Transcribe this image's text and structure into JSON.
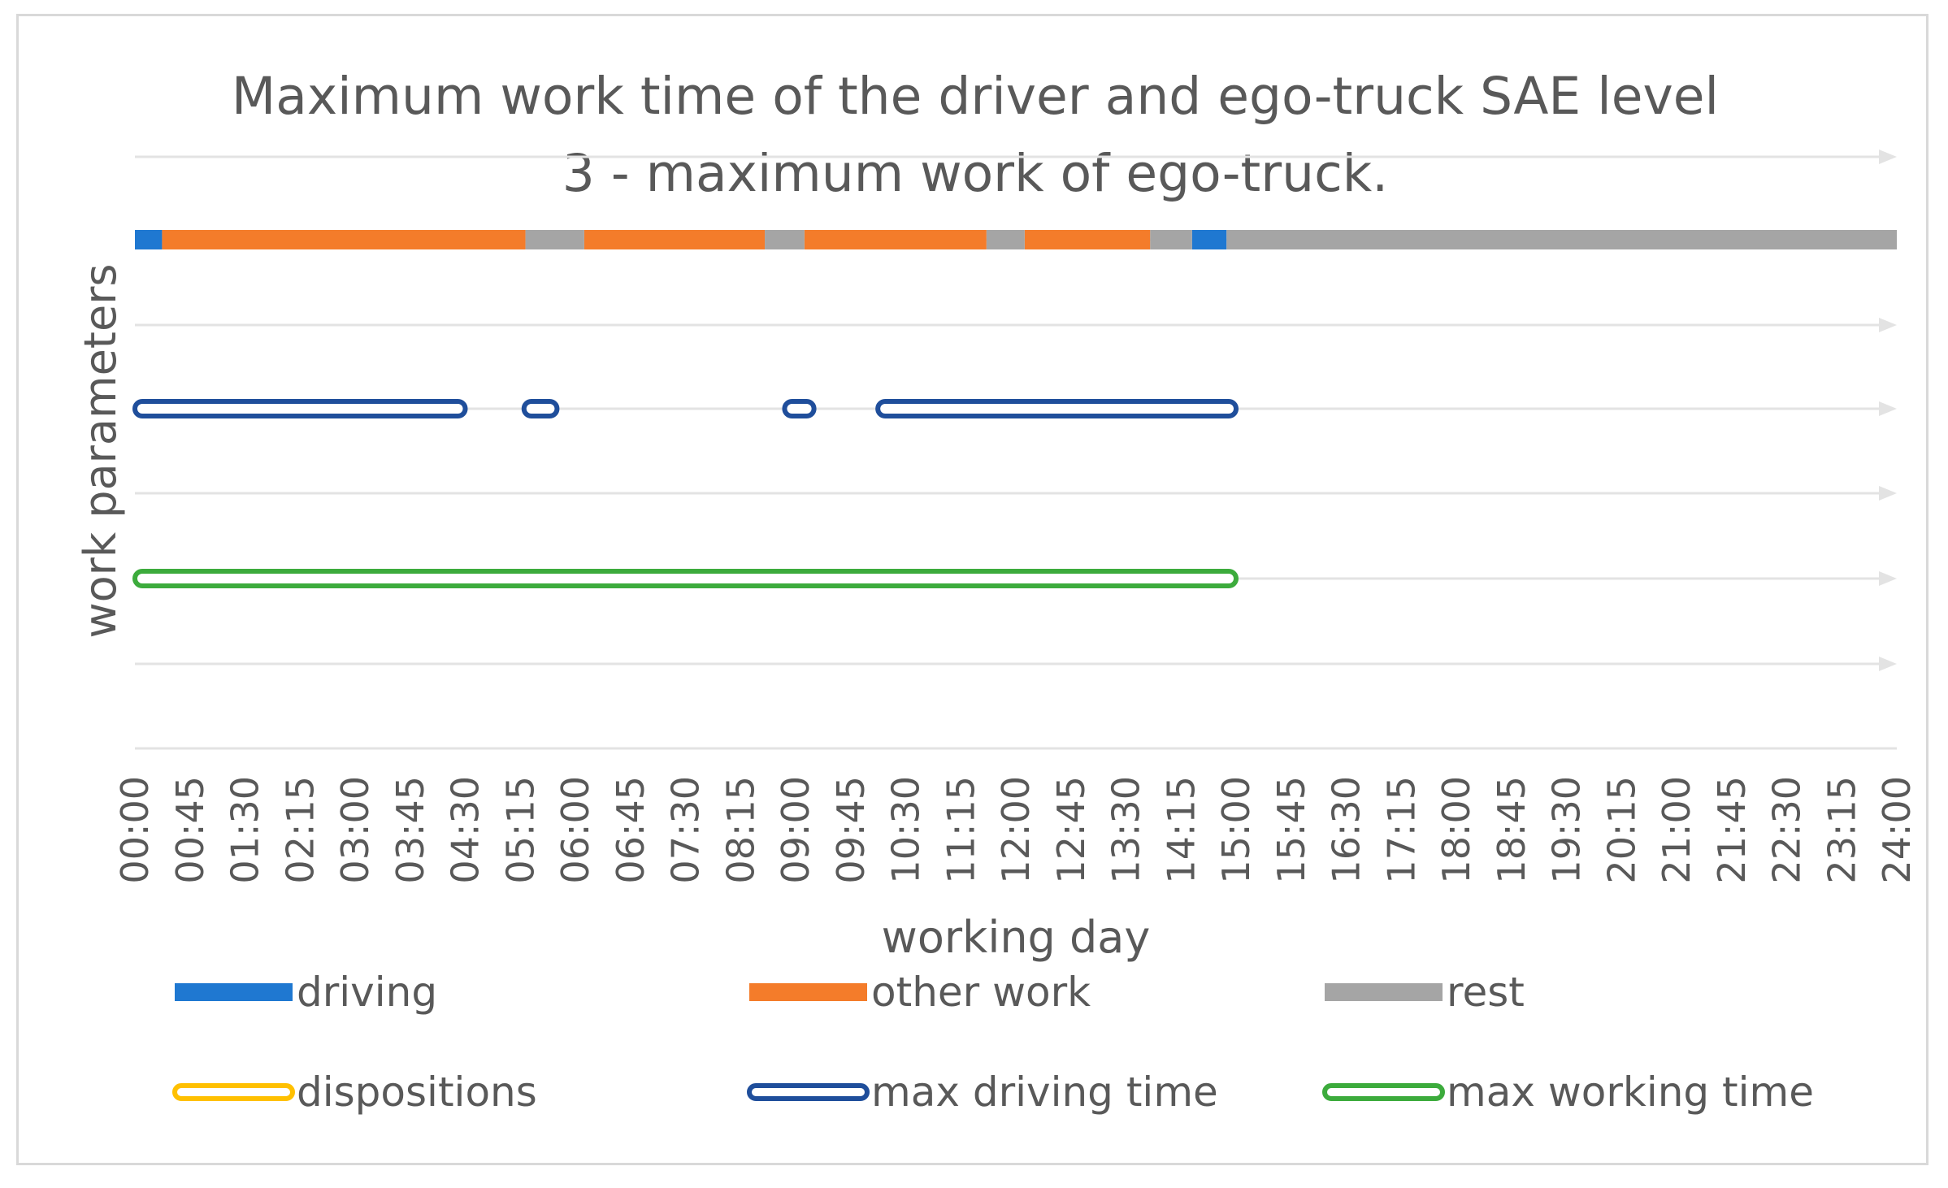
{
  "chart_data": {
    "type": "bar",
    "title_lines": [
      "Maximum work time of the driver and ego-truck SAE level",
      "3 - maximum work of ego-truck."
    ],
    "xlabel": "working day",
    "ylabel": "work parameters",
    "x_unit": "hours",
    "xlim": [
      0,
      24
    ],
    "x_ticks": [
      "00:00",
      "00:45",
      "01:30",
      "02:15",
      "03:00",
      "03:45",
      "04:30",
      "05:15",
      "06:00",
      "06:45",
      "07:30",
      "08:15",
      "09:00",
      "09:45",
      "10:30",
      "11:15",
      "12:00",
      "12:45",
      "13:30",
      "14:15",
      "15:00",
      "15:45",
      "16:30",
      "17:15",
      "18:00",
      "18:45",
      "19:30",
      "20:15",
      "21:00",
      "21:45",
      "22:30",
      "23:15",
      "24:00"
    ],
    "grid": true,
    "legend_position": "bottom",
    "colors": {
      "driving": "#1f78d1",
      "other work": "#f47c2a",
      "rest": "#a5a5a5",
      "dispositions": "#ffc000",
      "max driving time": "#1f4e9b",
      "max working time": "#3cab3c",
      "grid": "#e3e3e3",
      "text": "#595959"
    },
    "series": [
      {
        "name": "driving",
        "row": "activity",
        "intervals": [
          [
            0,
            0.37
          ],
          [
            14.4,
            14.87
          ]
        ]
      },
      {
        "name": "other work",
        "row": "activity",
        "intervals": [
          [
            0.37,
            5.32
          ],
          [
            6.12,
            8.58
          ],
          [
            9.12,
            11.6
          ],
          [
            12.12,
            13.83
          ]
        ]
      },
      {
        "name": "rest",
        "row": "activity",
        "intervals": [
          [
            5.32,
            6.12
          ],
          [
            8.58,
            9.12
          ],
          [
            11.6,
            12.12
          ],
          [
            13.83,
            14.4
          ],
          [
            14.87,
            24
          ]
        ]
      },
      {
        "name": "dispositions",
        "row": "dispositions",
        "intervals": []
      },
      {
        "name": "max driving time",
        "row": "max driving time",
        "intervals": [
          [
            0,
            4.5
          ],
          [
            5.3,
            5.75
          ],
          [
            8.85,
            9.25
          ],
          [
            10.12,
            15
          ]
        ]
      },
      {
        "name": "max working time",
        "row": "max working time",
        "intervals": [
          [
            0,
            15
          ]
        ]
      }
    ]
  }
}
